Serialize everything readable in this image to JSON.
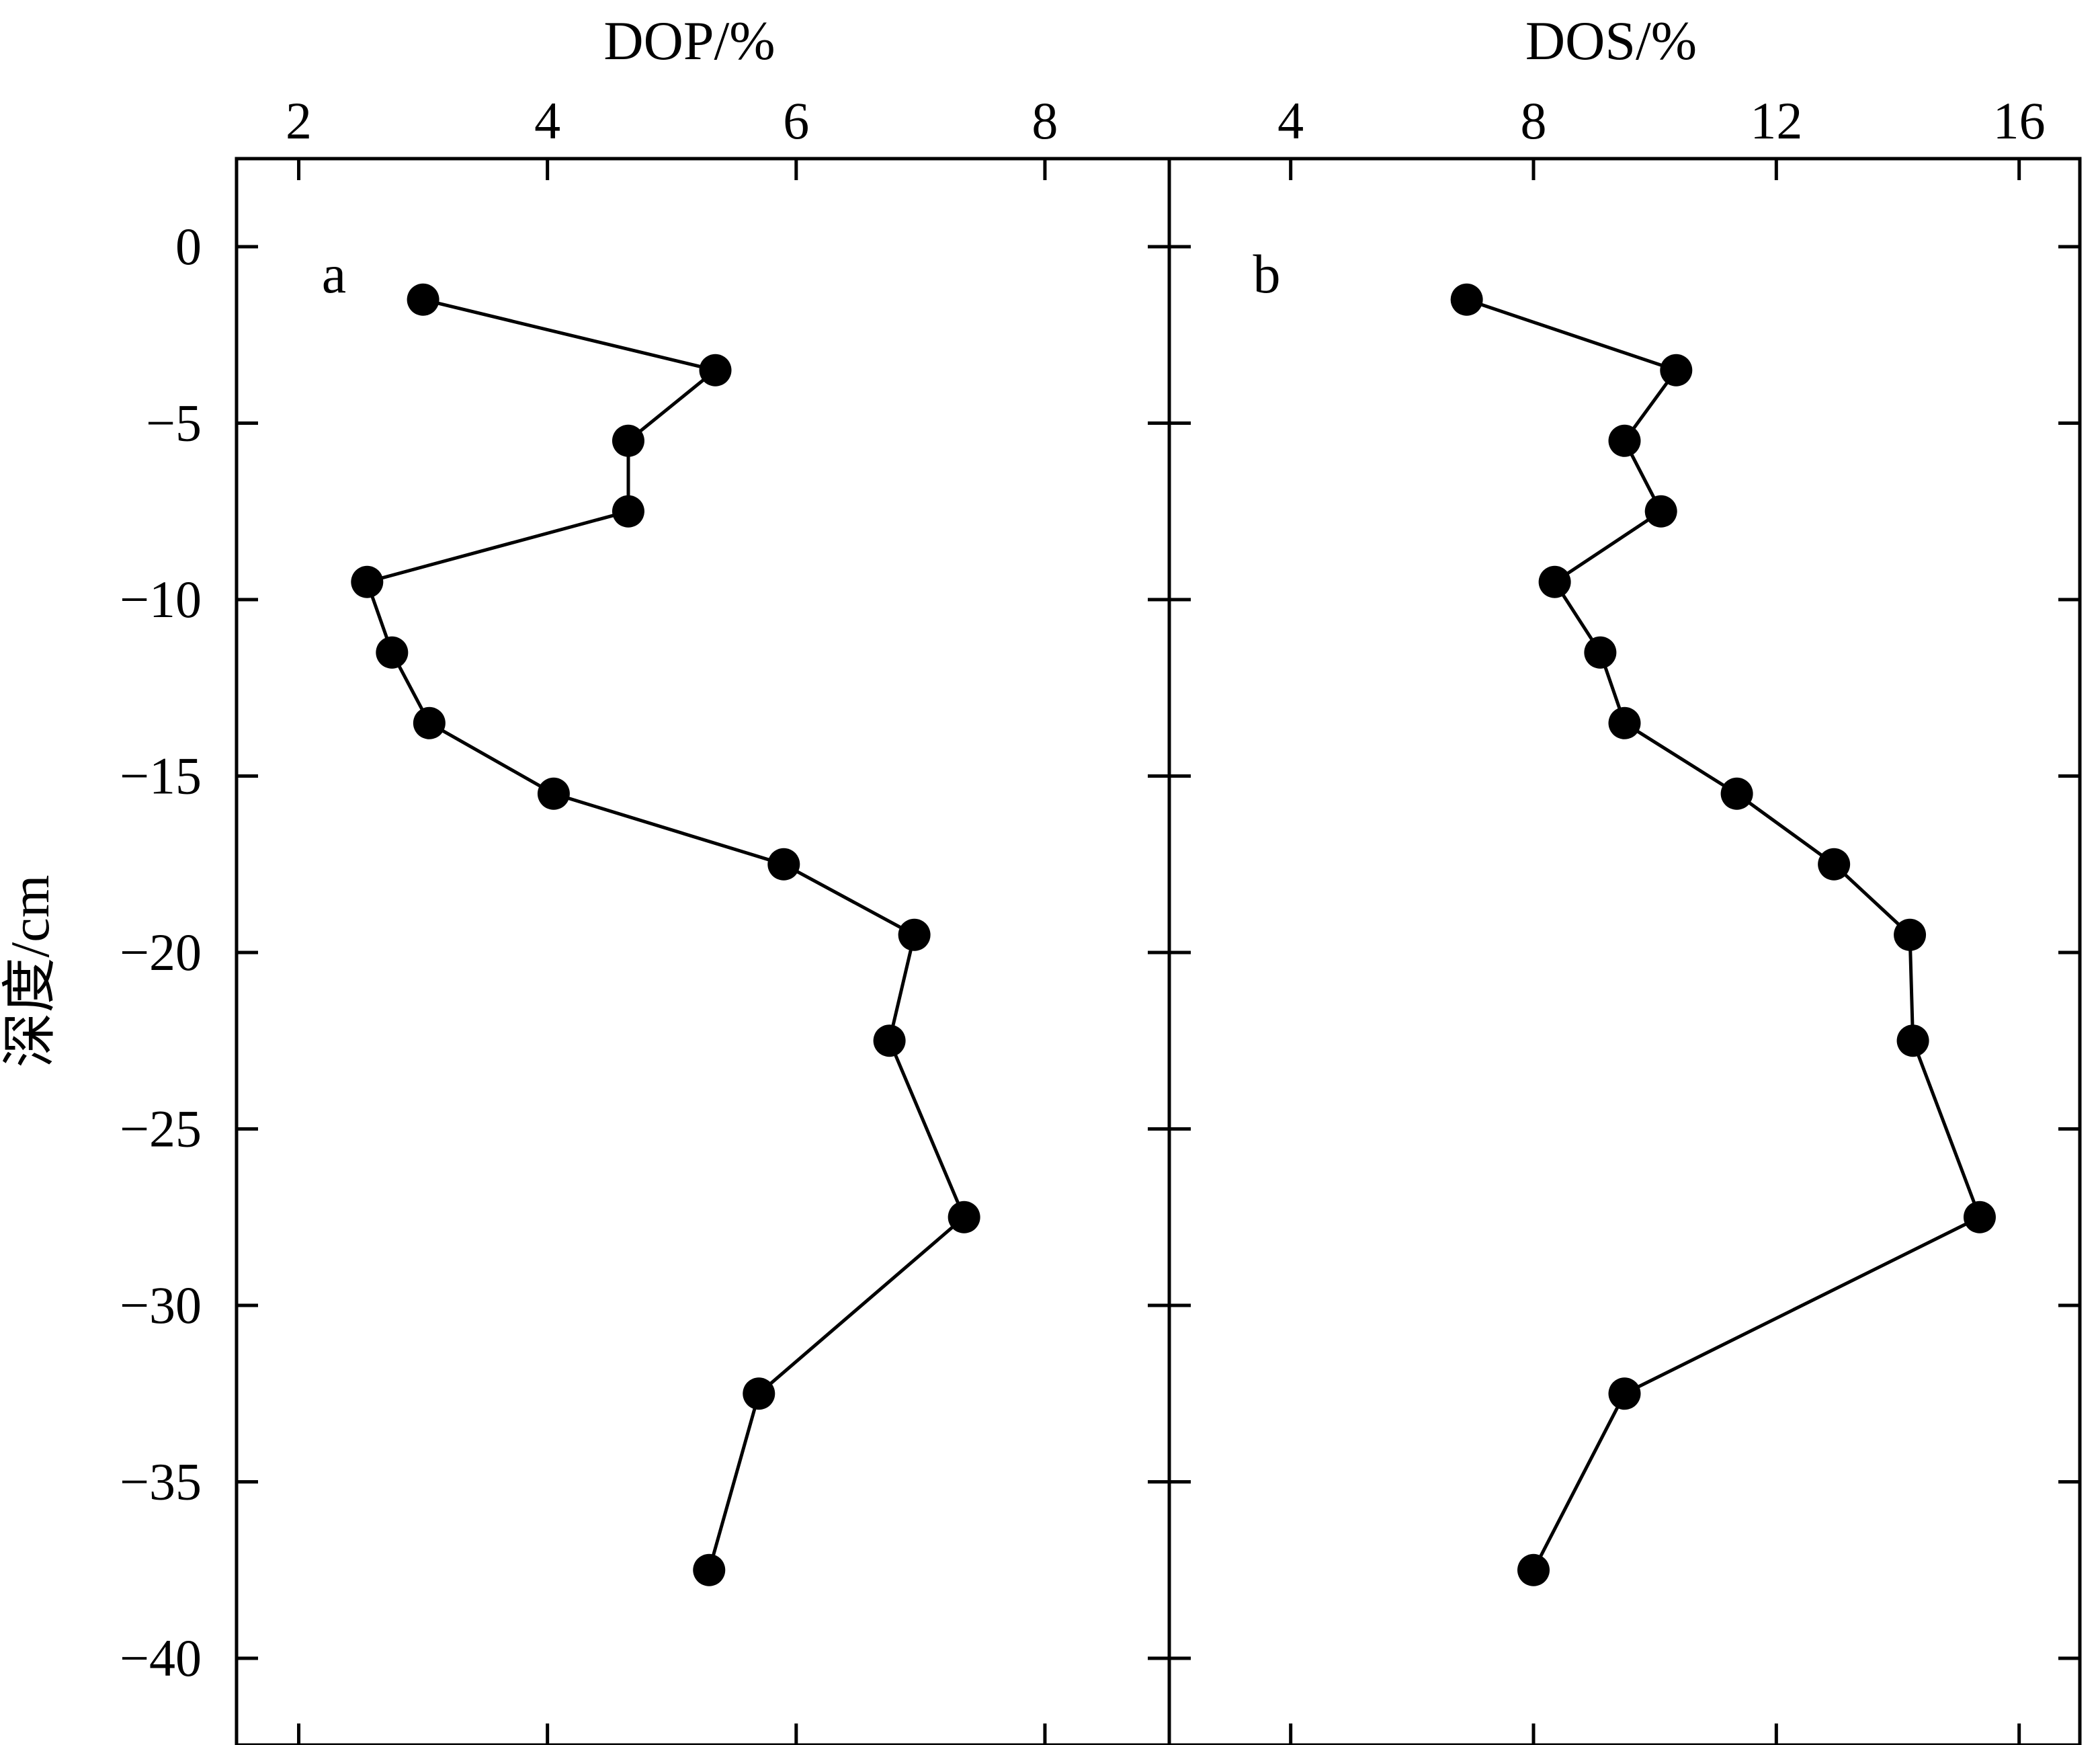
{
  "chart_data": [
    {
      "type": "line",
      "panel_label": "a",
      "xlabel": "DOP/%",
      "ylabel": "深度/cm",
      "xlim": [
        1.5,
        9.0
      ],
      "ylim": [
        -42.5,
        2.5
      ],
      "xticks": [
        2,
        4,
        6,
        8
      ],
      "yticks": [
        0,
        -5,
        -10,
        -15,
        -20,
        -25,
        -30,
        -35,
        -40
      ],
      "ytick_labels": [
        "0",
        "−5",
        "−10",
        "−15",
        "−20",
        "−25",
        "−30",
        "−35",
        "−40"
      ],
      "x_axis_position": "top",
      "markers": "filled-circle",
      "series": [
        {
          "x": [
            3.0,
            5.35,
            4.65,
            4.65,
            2.55,
            2.75,
            3.05,
            4.05,
            5.9,
            6.95,
            6.75,
            7.35,
            5.7,
            5.3
          ],
          "y": [
            -1.5,
            -3.5,
            -5.5,
            -7.5,
            -9.5,
            -11.5,
            -13.5,
            -15.5,
            -17.5,
            -19.5,
            -22.5,
            -27.5,
            -32.5,
            -37.5
          ]
        }
      ]
    },
    {
      "type": "line",
      "panel_label": "b",
      "xlabel": "DOS/%",
      "xlim": [
        2.0,
        17.0
      ],
      "ylim": [
        -42.5,
        2.5
      ],
      "xticks": [
        4,
        8,
        12,
        16
      ],
      "x_axis_position": "top",
      "markers": "filled-circle",
      "series": [
        {
          "x": [
            6.9,
            10.35,
            9.5,
            10.1,
            8.35,
            9.1,
            9.5,
            11.35,
            12.95,
            14.2,
            14.25,
            15.35,
            9.5,
            8.0
          ],
          "y": [
            -1.5,
            -3.5,
            -5.5,
            -7.5,
            -9.5,
            -11.5,
            -13.5,
            -15.5,
            -17.5,
            -19.5,
            -22.5,
            -27.5,
            -32.5,
            -37.5
          ]
        }
      ]
    }
  ]
}
